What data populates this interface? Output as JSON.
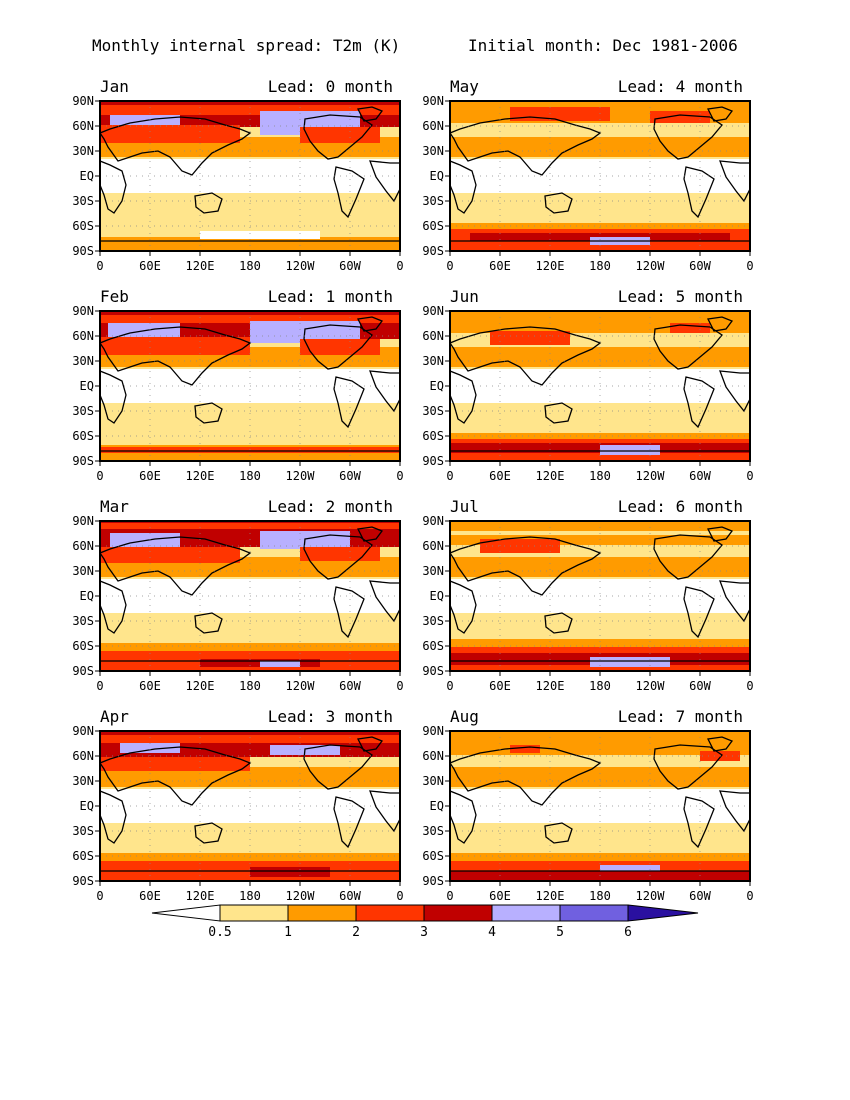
{
  "title_left": "Monthly internal spread: T2m (K)",
  "title_right": "Initial month: Dec 1981-2006",
  "lat_ticks": [
    "90N",
    "60N",
    "30N",
    "EQ",
    "30S",
    "60S",
    "90S"
  ],
  "lon_ticks": [
    "0",
    "60E",
    "120E",
    "180",
    "120W",
    "60W",
    "0"
  ],
  "panels": [
    {
      "month": "Jan",
      "lead": "Lead: 0 month"
    },
    {
      "month": "May",
      "lead": "Lead: 4 month"
    },
    {
      "month": "Feb",
      "lead": "Lead: 1 month"
    },
    {
      "month": "Jun",
      "lead": "Lead: 5 month"
    },
    {
      "month": "Mar",
      "lead": "Lead: 2 month"
    },
    {
      "month": "Jul",
      "lead": "Lead: 6 month"
    },
    {
      "month": "Apr",
      "lead": "Lead: 3 month"
    },
    {
      "month": "Aug",
      "lead": "Lead: 7 month"
    }
  ],
  "colorbar": {
    "labels": [
      "0.5",
      "1",
      "2",
      "3",
      "4",
      "5",
      "6"
    ],
    "colors": [
      "#ffffff",
      "#ffe58c",
      "#ff9b00",
      "#ff3500",
      "#c00000",
      "#b8b0ff",
      "#7060e0",
      "#2a10a0"
    ]
  }
}
